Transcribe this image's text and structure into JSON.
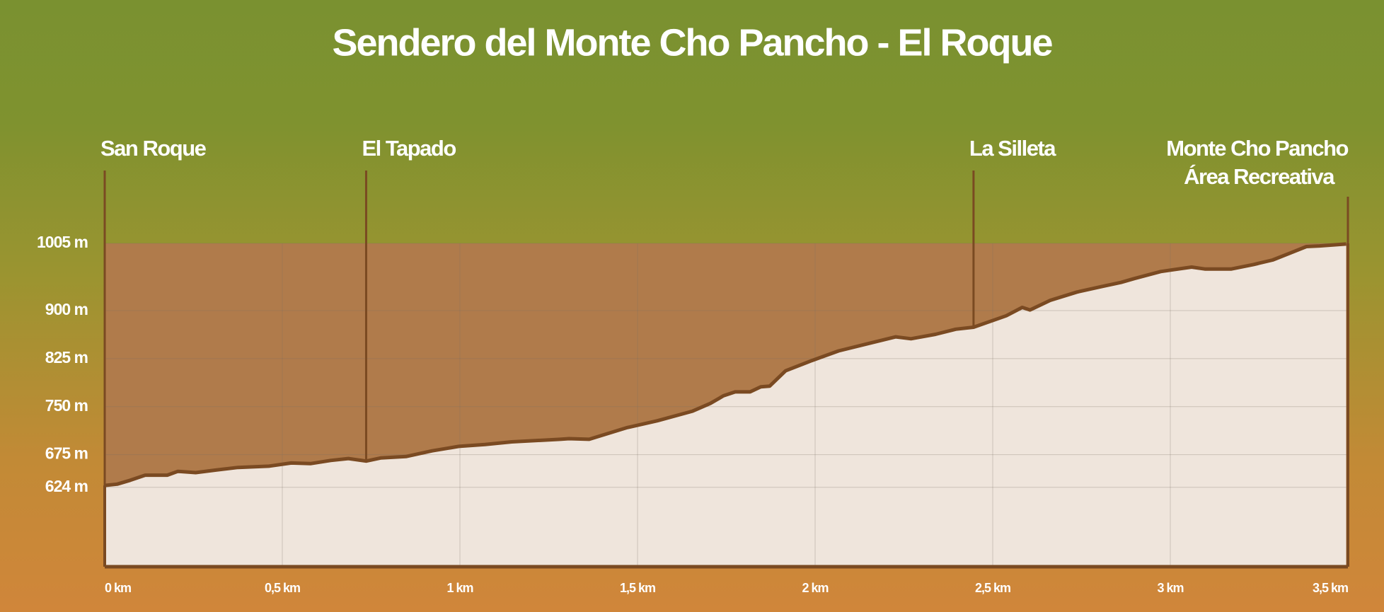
{
  "chart_data": {
    "type": "area",
    "title": "Sendero del Monte Cho Pancho - El Roque",
    "x": [
      0,
      0.035,
      0.072,
      0.114,
      0.176,
      0.206,
      0.256,
      0.313,
      0.375,
      0.462,
      0.525,
      0.579,
      0.636,
      0.686,
      0.736,
      0.778,
      0.848,
      0.922,
      0.997,
      1.071,
      1.146,
      1.282,
      1.307,
      1.364,
      1.469,
      1.556,
      1.655,
      1.705,
      1.742,
      1.775,
      1.817,
      1.847,
      1.872,
      1.917,
      1.991,
      2.066,
      2.153,
      2.227,
      2.27,
      2.339,
      2.396,
      2.446,
      2.538,
      2.583,
      2.605,
      2.662,
      2.737,
      2.811,
      2.861,
      2.898,
      2.973,
      3.06,
      3.097,
      3.172,
      3.234,
      3.288,
      3.338,
      3.383,
      3.42,
      3.495
    ],
    "values": [
      627,
      629,
      635,
      643,
      643,
      649,
      647,
      651,
      655,
      657,
      662,
      661,
      666,
      669,
      665,
      670,
      672,
      681,
      688,
      691,
      695,
      699,
      700,
      699,
      717,
      728,
      743,
      755,
      767,
      773,
      773,
      781,
      782,
      806,
      822,
      837,
      849,
      859,
      856,
      863,
      871,
      874,
      892,
      905,
      901,
      916,
      929,
      938,
      944,
      950,
      961,
      968,
      965,
      965,
      972,
      979,
      990,
      1000,
      1001,
      1004
    ],
    "color": "#7a4a22",
    "xlim": [
      0,
      3.5
    ],
    "ylim": [
      500,
      1005
    ],
    "xticks": [
      {
        "value": 0,
        "label": "0 km"
      },
      {
        "value": 0.5,
        "label": "0,5 km"
      },
      {
        "value": 1,
        "label": "1 km"
      },
      {
        "value": 1.5,
        "label": "1,5 km"
      },
      {
        "value": 2,
        "label": "2 km"
      },
      {
        "value": 2.5,
        "label": "2,5 km"
      },
      {
        "value": 3,
        "label": "3 km"
      },
      {
        "value": 3.5,
        "label": "3,5 km"
      }
    ],
    "yticks": [
      {
        "value": 624,
        "label": "624 m"
      },
      {
        "value": 675,
        "label": "675 m"
      },
      {
        "value": 750,
        "label": "750 m"
      },
      {
        "value": 825,
        "label": "825 m"
      },
      {
        "value": 900,
        "label": "900 m"
      },
      {
        "value": 1005,
        "label": "1005 m"
      }
    ],
    "grid": true,
    "markers": [
      {
        "x": 0,
        "lines": [
          "San Roque"
        ]
      },
      {
        "x": 0.736,
        "lines": [
          "El Tapado"
        ]
      },
      {
        "x": 2.446,
        "lines": [
          "La Silleta"
        ]
      },
      {
        "x": 3.5,
        "lines": [
          "Monte Cho Pancho",
          "Área Recreativa"
        ]
      }
    ]
  }
}
